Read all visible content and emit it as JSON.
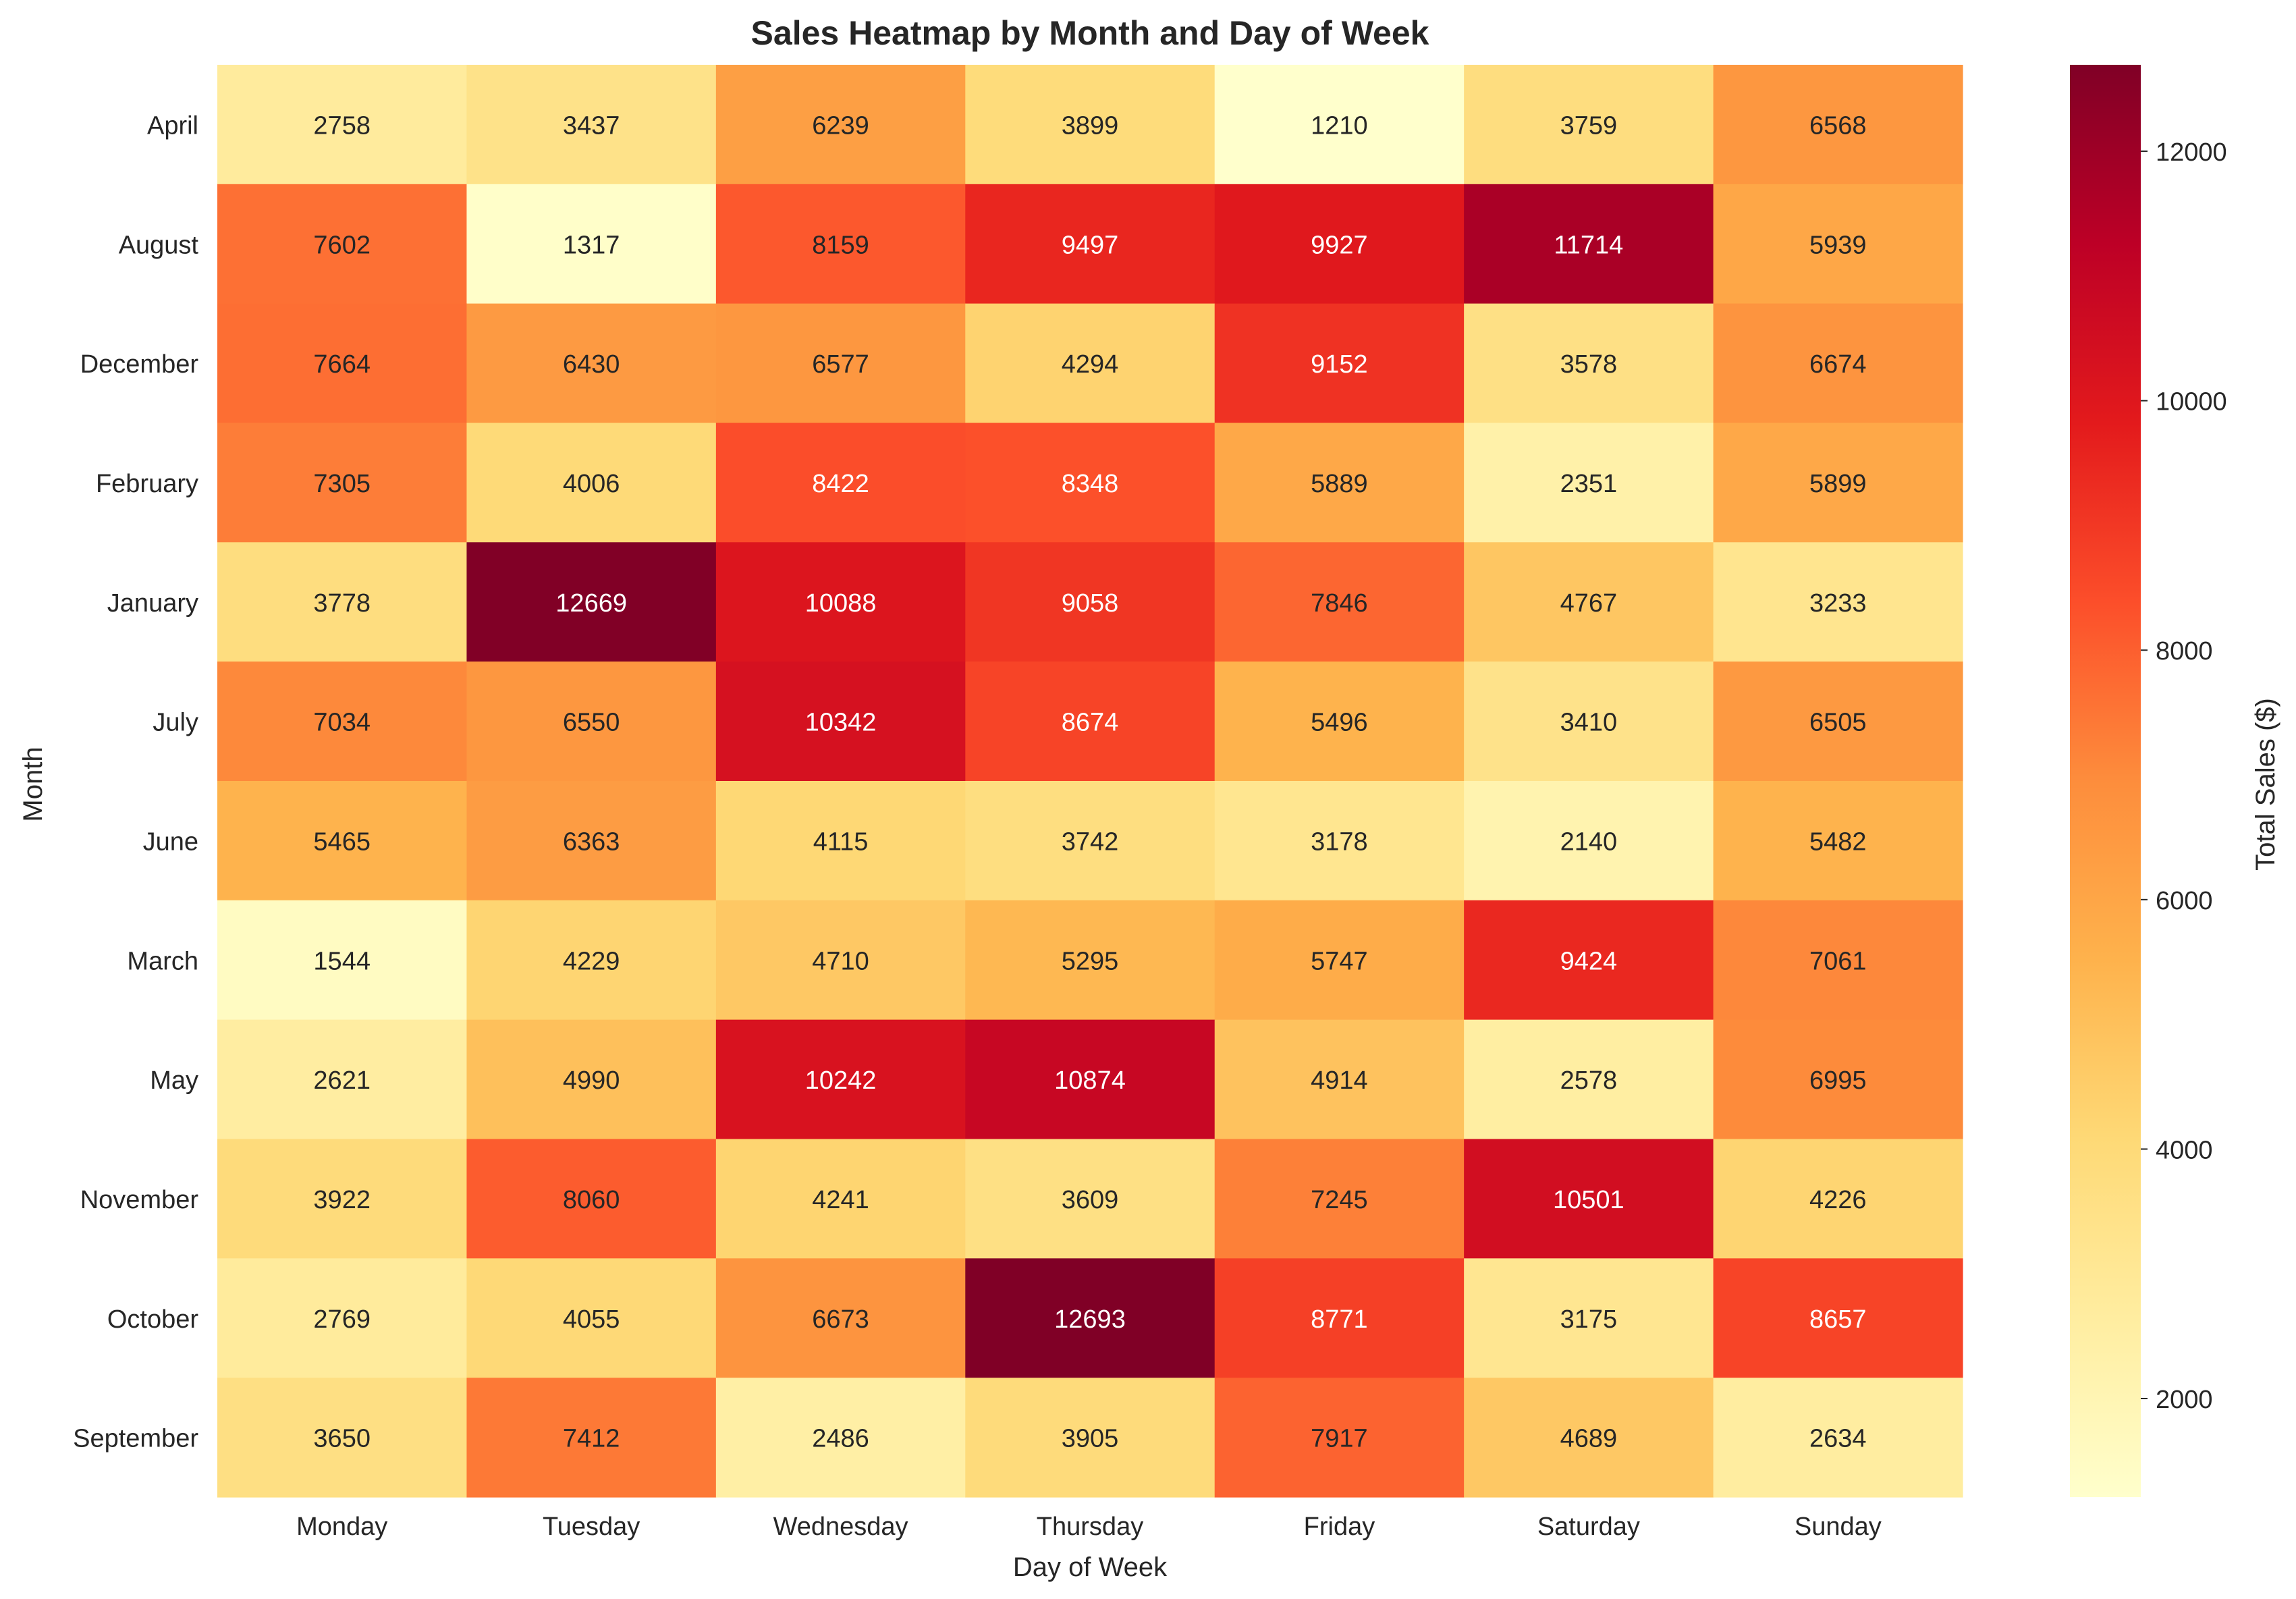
{
  "chart_data": {
    "type": "heatmap",
    "title": "Sales Heatmap by Month and Day of Week",
    "xlabel": "Day of Week",
    "ylabel": "Month",
    "colorbar_label": "Total Sales ($)",
    "colormap": "YlOrRd",
    "color_range": [
      1210,
      12693
    ],
    "colorbar_ticks": [
      2000,
      4000,
      6000,
      8000,
      10000,
      12000
    ],
    "colorbar_tick_labels": [
      "2000",
      "4000",
      "6000",
      "8000",
      "10000",
      "12000"
    ],
    "columns": [
      "Monday",
      "Tuesday",
      "Wednesday",
      "Thursday",
      "Friday",
      "Saturday",
      "Sunday"
    ],
    "rows": [
      "April",
      "August",
      "December",
      "February",
      "January",
      "July",
      "June",
      "March",
      "May",
      "November",
      "October",
      "September"
    ],
    "values": [
      [
        2758,
        3437,
        6239,
        3899,
        1210,
        3759,
        6568
      ],
      [
        7602,
        1317,
        8159,
        9497,
        9927,
        11714,
        5939
      ],
      [
        7664,
        6430,
        6577,
        4294,
        9152,
        3578,
        6674
      ],
      [
        7305,
        4006,
        8422,
        8348,
        5889,
        2351,
        5899
      ],
      [
        3778,
        12669,
        10088,
        9058,
        7846,
        4767,
        3233
      ],
      [
        7034,
        6550,
        10342,
        8674,
        5496,
        3410,
        6505
      ],
      [
        5465,
        6363,
        4115,
        3742,
        3178,
        2140,
        5482
      ],
      [
        1544,
        4229,
        4710,
        5295,
        5747,
        9424,
        7061
      ],
      [
        2621,
        4990,
        10242,
        10874,
        4914,
        2578,
        6995
      ],
      [
        3922,
        8060,
        4241,
        3609,
        7245,
        10501,
        4226
      ],
      [
        2769,
        4055,
        6673,
        12693,
        8771,
        3175,
        8657
      ],
      [
        3650,
        7412,
        2486,
        3905,
        7917,
        4689,
        2634
      ]
    ]
  }
}
